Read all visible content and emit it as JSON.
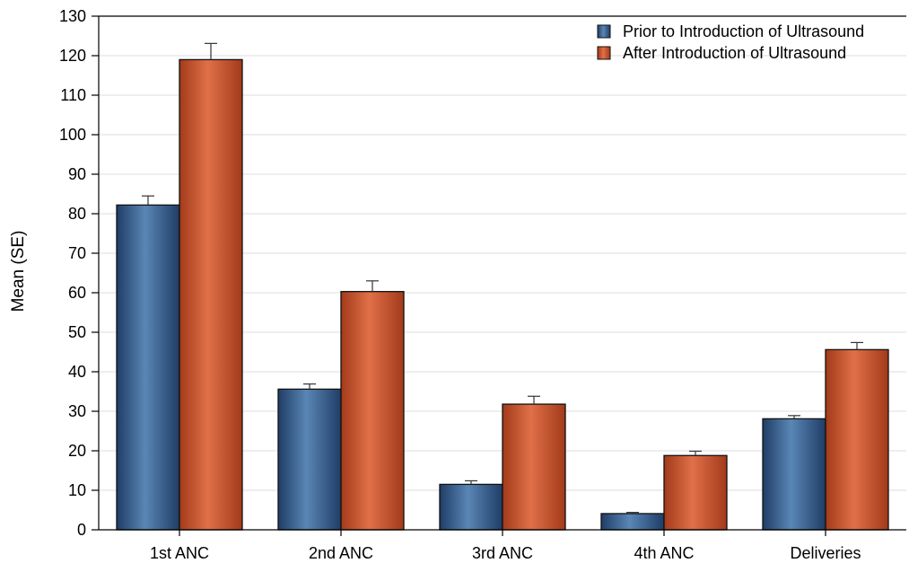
{
  "chart_data": {
    "type": "bar",
    "title": "",
    "xlabel": "",
    "ylabel": "Mean (SE)",
    "ylim": [
      0,
      130
    ],
    "yticks": [
      0,
      10,
      20,
      30,
      40,
      50,
      60,
      70,
      80,
      90,
      100,
      110,
      120,
      130
    ],
    "categories": [
      "1st ANC",
      "2nd ANC",
      "3rd ANC",
      "4th ANC",
      "Deliveries"
    ],
    "grid": "horizontal",
    "legend_position": "top-right",
    "series": [
      {
        "name": "Prior to Introduction of Ultrasound",
        "color": "#3a5f8c",
        "values": [
          82.2,
          35.6,
          11.5,
          4.1,
          28.1
        ],
        "errors": [
          2.3,
          1.3,
          0.9,
          0.3,
          0.8
        ]
      },
      {
        "name": "After Introduction of Ultrasound",
        "color": "#c5532e",
        "values": [
          119.0,
          60.3,
          31.8,
          18.8,
          45.6
        ],
        "errors": [
          4.1,
          2.7,
          2.0,
          1.1,
          1.8
        ]
      }
    ]
  }
}
